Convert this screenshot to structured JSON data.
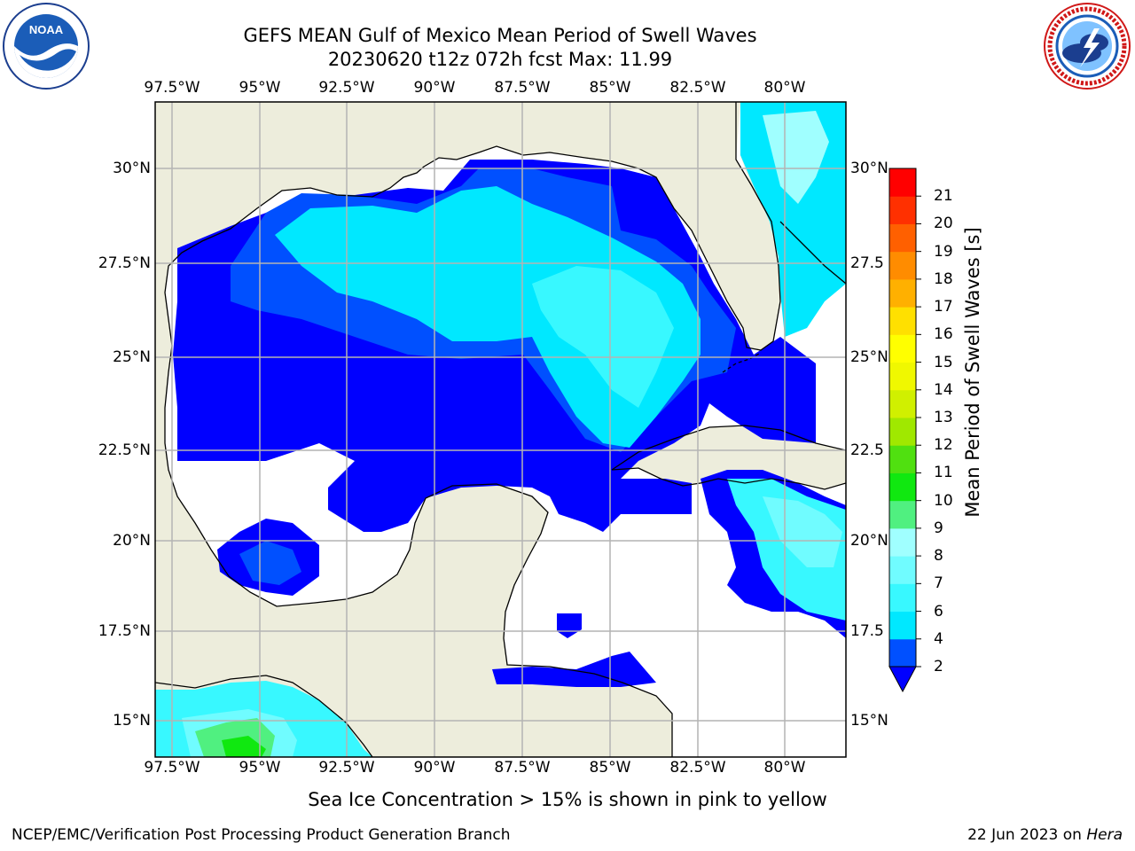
{
  "title": {
    "line1": "GEFS MEAN Gulf of Mexico Mean Period of Swell Waves",
    "line2": "20230620 t12z 072h fcst   Max: 11.99"
  },
  "logos": {
    "left": "NOAA",
    "right": "National Weather Service"
  },
  "map": {
    "lon_labels": [
      "97.5°W",
      "95°W",
      "92.5°W",
      "90°W",
      "87.5°W",
      "85°W",
      "82.5°W",
      "80°W"
    ],
    "lat_labels_left": [
      "30°N",
      "27.5°N",
      "25°N",
      "22.5°N",
      "20°N",
      "17.5°N",
      "15°N"
    ],
    "lat_labels_right": [
      "30°N",
      "27.5",
      "25°N",
      "22.5",
      "20°N",
      "17.5",
      "15°N"
    ],
    "extent": {
      "lon_min": -98,
      "lon_max": -78.3,
      "lat_min": 14,
      "lat_max": 31.8
    },
    "colors": {
      "land": "#ededdc",
      "ocean_empty": "#ffffff",
      "grid": "#b4b4b4",
      "coast": "#000000"
    }
  },
  "colorbar": {
    "label": "Mean Period of Swell Waves [s]",
    "ticks": [
      "2",
      "4",
      "6",
      "7",
      "8",
      "9",
      "10",
      "11",
      "12",
      "13",
      "14",
      "15",
      "16",
      "17",
      "18",
      "19",
      "20",
      "21"
    ],
    "colors": [
      "#0050ff",
      "#00e8ff",
      "#38f8ff",
      "#70fcff",
      "#a0ffff",
      "#50f080",
      "#10e810",
      "#50e010",
      "#a0e800",
      "#d0f000",
      "#f0f800",
      "#ffff00",
      "#ffe000",
      "#ffb000",
      "#ff8c00",
      "#ff6000",
      "#ff3000",
      "#ff0000"
    ],
    "under_color": "#0000ff"
  },
  "footer": {
    "sea_ice_note": "Sea Ice Concentration > 15% is shown in pink to yellow",
    "credit": "NCEP/EMC/Verification Post Processing Product Generation Branch",
    "date": "22 Jun 2023 on ",
    "host": "Hera"
  }
}
